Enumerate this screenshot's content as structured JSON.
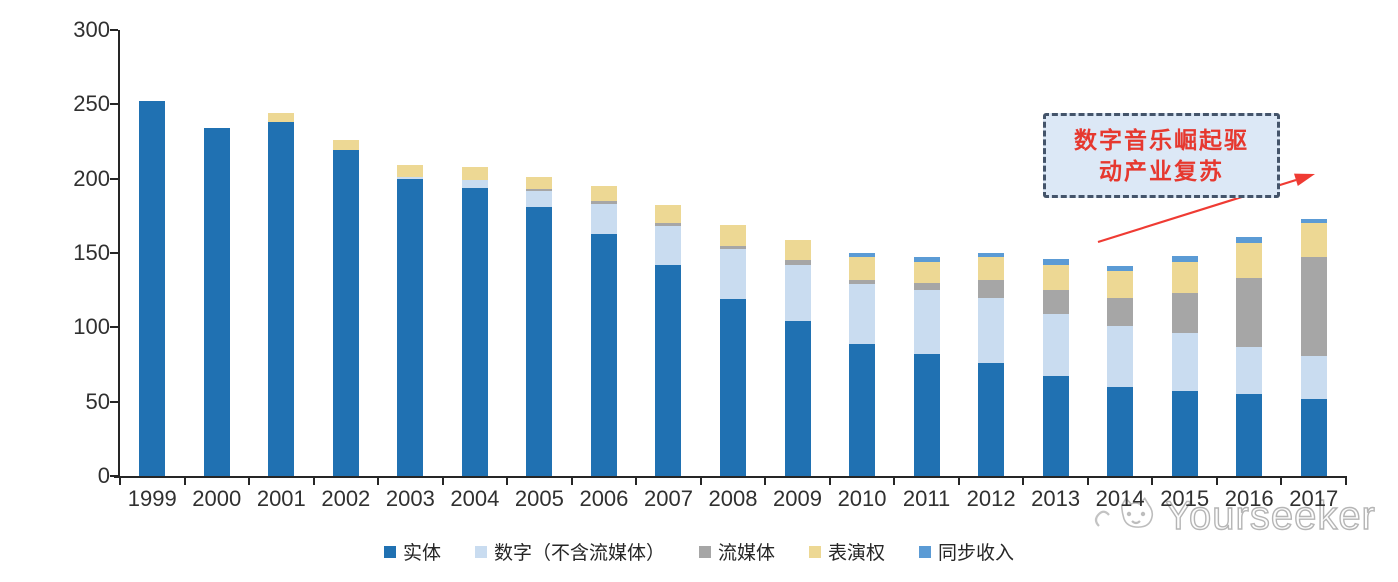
{
  "chart_data": {
    "type": "bar",
    "stacked": true,
    "title": "",
    "xlabel": "",
    "ylabel": "",
    "ylim": [
      0,
      300
    ],
    "y_ticks": [
      0,
      50,
      100,
      150,
      200,
      250,
      300
    ],
    "grid": false,
    "legend_position": "bottom",
    "categories": [
      "1999",
      "2000",
      "2001",
      "2002",
      "2003",
      "2004",
      "2005",
      "2006",
      "2007",
      "2008",
      "2009",
      "2010",
      "2011",
      "2012",
      "2013",
      "2014",
      "2015",
      "2016",
      "2017"
    ],
    "series": [
      {
        "name": "实体",
        "color": "#2071b2",
        "values": [
          252,
          234,
          238,
          219,
          200,
          194,
          181,
          163,
          142,
          119,
          104,
          89,
          82,
          76,
          67,
          60,
          57,
          55,
          52
        ]
      },
      {
        "name": "数字（不含流媒体）",
        "color": "#c9dcf0",
        "values": [
          0,
          0,
          0,
          0,
          1,
          5,
          11,
          20,
          26,
          34,
          38,
          40,
          43,
          44,
          42,
          41,
          39,
          32,
          29
        ]
      },
      {
        "name": "流媒体",
        "color": "#a6a6a6",
        "values": [
          0,
          0,
          0,
          0,
          0,
          0,
          1,
          2,
          2,
          2,
          3,
          3,
          5,
          12,
          16,
          19,
          27,
          46,
          66
        ]
      },
      {
        "name": "表演权",
        "color": "#edd894",
        "values": [
          0,
          0,
          6,
          7,
          8,
          9,
          8,
          10,
          12,
          14,
          14,
          15,
          14,
          15,
          17,
          18,
          21,
          24,
          23
        ]
      },
      {
        "name": "同步收入",
        "color": "#5b9bd5",
        "values": [
          0,
          0,
          0,
          0,
          0,
          0,
          0,
          0,
          0,
          0,
          0,
          3,
          3,
          3,
          4,
          3,
          4,
          4,
          3
        ]
      }
    ]
  },
  "annotation": {
    "line1": "数字音乐崛起驱",
    "line2": "动产业复苏",
    "text_color": "#e6382f",
    "box_fill": "#dce8f6",
    "border_color": "#44546a",
    "arrow_color": "#ef3b33"
  },
  "watermark": {
    "text": "Yourseeker"
  }
}
